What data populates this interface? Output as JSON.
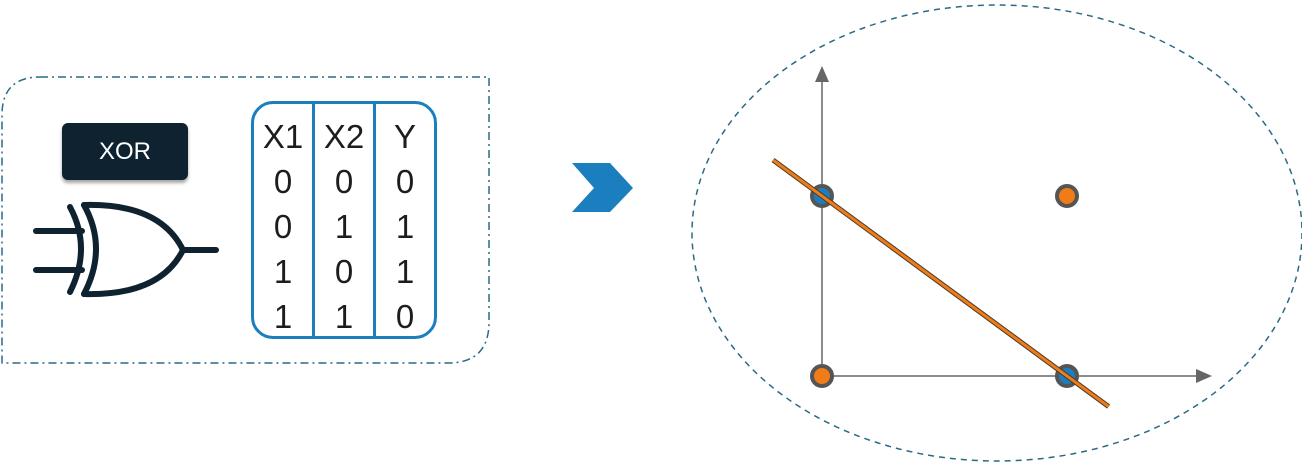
{
  "gate": {
    "label": "XOR",
    "icon": "xor-gate-icon"
  },
  "truth_table": {
    "columns": [
      {
        "header": "X1",
        "values": [
          "0",
          "0",
          "1",
          "1"
        ]
      },
      {
        "header": "X2",
        "values": [
          "0",
          "1",
          "0",
          "1"
        ]
      },
      {
        "header": "Y",
        "values": [
          "0",
          "1",
          "1",
          "0"
        ]
      }
    ]
  },
  "arrow": {
    "icon": "chevron-right-icon"
  },
  "plot": {
    "points": [
      {
        "x1": 0,
        "x2": 1,
        "class": "blue"
      },
      {
        "x1": 1,
        "x2": 1,
        "class": "orange"
      },
      {
        "x1": 0,
        "x2": 0,
        "class": "orange"
      },
      {
        "x1": 1,
        "x2": 0,
        "class": "blue"
      }
    ],
    "line_through": [
      [
        0,
        1
      ],
      [
        1,
        0
      ]
    ]
  },
  "colors": {
    "blue": "#1b7fbf",
    "orange": "#f07c17",
    "dark": "#0f2230",
    "dash": "#2a6a86",
    "axis": "#555555"
  }
}
